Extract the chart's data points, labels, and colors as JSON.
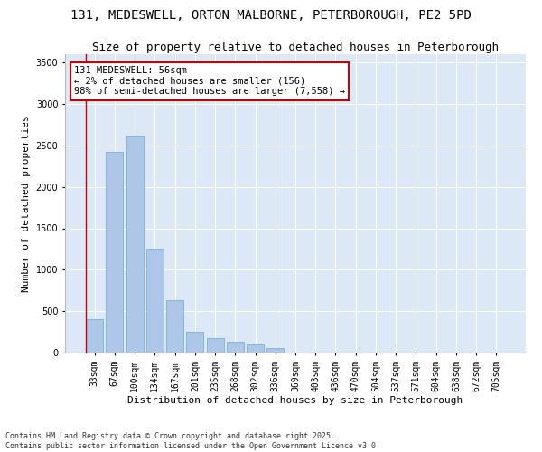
{
  "title": "131, MEDESWELL, ORTON MALBORNE, PETERBOROUGH, PE2 5PD",
  "subtitle": "Size of property relative to detached houses in Peterborough",
  "xlabel": "Distribution of detached houses by size in Peterborough",
  "ylabel": "Number of detached properties",
  "footnote1": "Contains HM Land Registry data © Crown copyright and database right 2025.",
  "footnote2": "Contains public sector information licensed under the Open Government Licence v3.0.",
  "annotation_title": "131 MEDESWELL: 56sqm",
  "annotation_line2": "← 2% of detached houses are smaller (156)",
  "annotation_line3": "98% of semi-detached houses are larger (7,558) →",
  "bar_color": "#aec6e8",
  "bar_edge_color": "#6aaad4",
  "annotation_box_color": "#ffffff",
  "annotation_box_edge": "#cc0000",
  "background_color": "#dce8f5",
  "grid_color": "#ffffff",
  "fig_bg_color": "#ffffff",
  "categories": [
    "33sqm",
    "67sqm",
    "100sqm",
    "134sqm",
    "167sqm",
    "201sqm",
    "235sqm",
    "268sqm",
    "302sqm",
    "336sqm",
    "369sqm",
    "403sqm",
    "436sqm",
    "470sqm",
    "504sqm",
    "537sqm",
    "571sqm",
    "604sqm",
    "638sqm",
    "672sqm",
    "705sqm"
  ],
  "values": [
    400,
    2420,
    2620,
    1250,
    630,
    255,
    175,
    130,
    100,
    50,
    0,
    0,
    0,
    0,
    0,
    0,
    0,
    0,
    0,
    0,
    0
  ],
  "ylim": [
    0,
    3600
  ],
  "yticks": [
    0,
    500,
    1000,
    1500,
    2000,
    2500,
    3000,
    3500
  ],
  "title_fontsize": 10,
  "subtitle_fontsize": 9,
  "axis_label_fontsize": 8,
  "tick_fontsize": 7,
  "annotation_fontsize": 7.5,
  "footnote_fontsize": 6
}
